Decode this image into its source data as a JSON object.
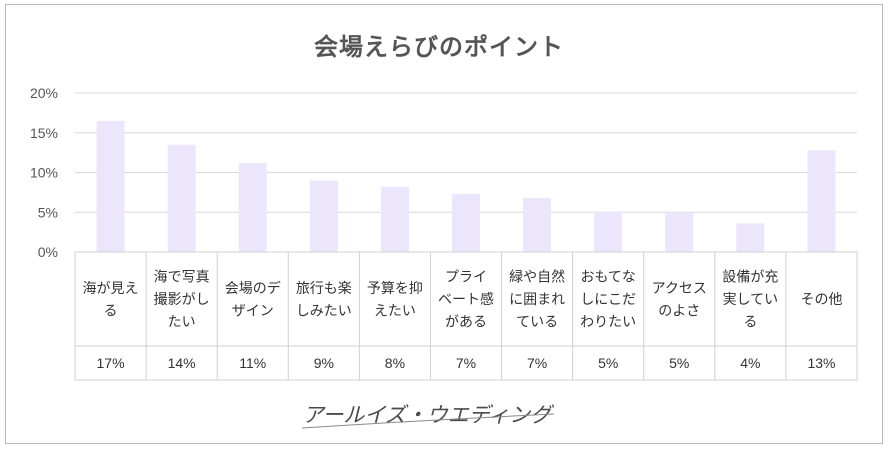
{
  "chart_data": {
    "type": "bar",
    "title": "会場えらびのポイント",
    "categories": [
      [
        "海が見え",
        "る"
      ],
      [
        "海で写真",
        "撮影がし",
        "たい"
      ],
      [
        "会場のデ",
        "ザイン"
      ],
      [
        "旅行も楽",
        "しみたい"
      ],
      [
        "予算を抑",
        "えたい"
      ],
      [
        "プライ",
        "ベート感",
        "がある"
      ],
      [
        "緑や自然",
        "に囲まれ",
        "ている"
      ],
      [
        "おもてな",
        "しにこだ",
        "わりたい"
      ],
      [
        "アクセス",
        "のよさ"
      ],
      [
        "設備が充",
        "実してい",
        "る"
      ],
      [
        "その他"
      ]
    ],
    "values": [
      16.5,
      13.5,
      11.2,
      9.0,
      8.2,
      7.3,
      6.8,
      5.1,
      5.0,
      3.6,
      12.8
    ],
    "data_labels": [
      "17%",
      "14%",
      "11%",
      "9%",
      "8%",
      "7%",
      "7%",
      "5%",
      "5%",
      "4%",
      "13%"
    ],
    "ylim": [
      0,
      20
    ],
    "yticks": [
      0,
      5,
      10,
      15,
      20
    ],
    "ytick_labels": [
      "0%",
      "5%",
      "10%",
      "15%",
      "20%"
    ],
    "bar_color": "#ebe6fb",
    "grid": true
  },
  "footer": {
    "logo_text": "アールイズ・ウエディング"
  }
}
